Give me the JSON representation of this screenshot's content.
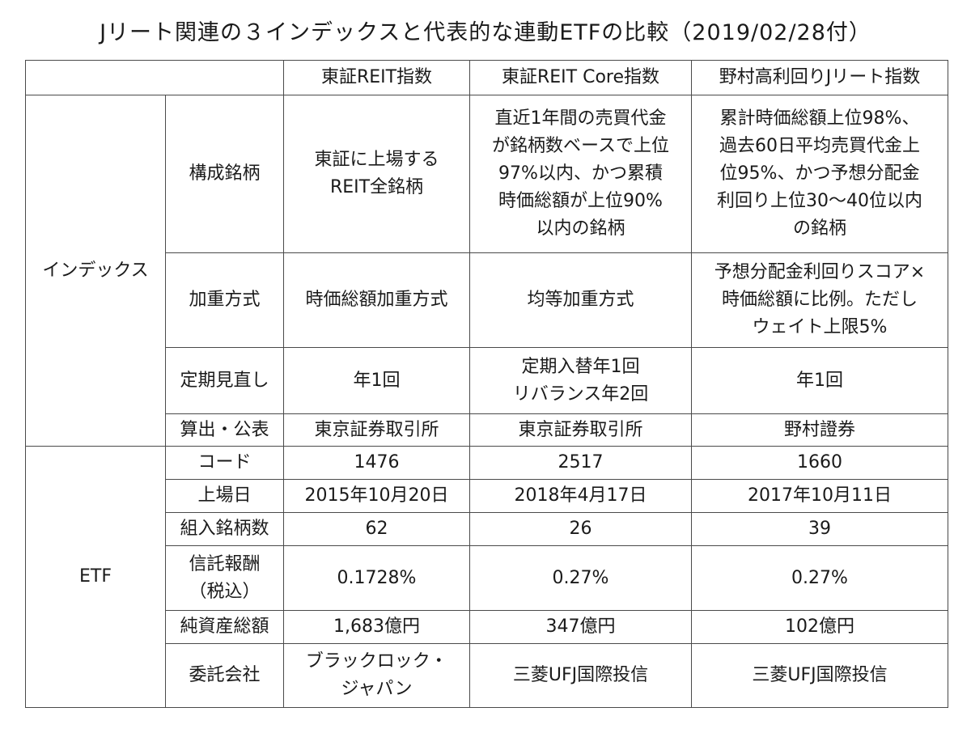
{
  "title": "Jリート関連の３インデックスと代表的な連動ETFの比較（2019/02/28付）",
  "header": {
    "col1": "東証REIT指数",
    "col2": "東証REIT Core指数",
    "col3": "野村高利回りJリート指数"
  },
  "groups": {
    "index": "インデックス",
    "etf": "ETF"
  },
  "rows": {
    "constituents": {
      "label": "構成銘柄",
      "c1": "東証に上場する\nREIT全銘柄",
      "c2": "直近1年間の売買代金\nが銘柄数ベースで上位\n97%以内、かつ累積\n時価総額が上位90%\n以内の銘柄",
      "c3": "累計時価総額上位98%、\n過去60日平均売買代金上\n位95%、かつ予想分配金\n利回り上位30〜40位以内\nの銘柄"
    },
    "weighting": {
      "label": "加重方式",
      "c1": "時価総額加重方式",
      "c2": "均等加重方式",
      "c3": "予想分配金利回りスコア×\n時価総額に比例。ただし\nウェイト上限5%"
    },
    "review": {
      "label": "定期見直し",
      "c1": "年1回",
      "c2": "定期入替年1回\nリバランス年2回",
      "c3": "年1回"
    },
    "publisher": {
      "label": "算出・公表",
      "c1": "東京証券取引所",
      "c2": "東京証券取引所",
      "c3": "野村證券"
    },
    "code": {
      "label": "コード",
      "c1": "1476",
      "c2": "2517",
      "c3": "1660"
    },
    "listing": {
      "label": "上場日",
      "c1": "2015年10月20日",
      "c2": "2018年4月17日",
      "c3": "2017年10月11日"
    },
    "holdings": {
      "label": "組入銘柄数",
      "c1": "62",
      "c2": "26",
      "c3": "39"
    },
    "fee": {
      "label": "信託報酬\n（税込）",
      "c1": "0.1728%",
      "c2": "0.27%",
      "c3": "0.27%"
    },
    "assets": {
      "label": "純資産総額",
      "c1": "1,683億円",
      "c2": "347億円",
      "c3": "102億円"
    },
    "manager": {
      "label": "委託会社",
      "c1": "ブラックロック・\nジャパン",
      "c2": "三菱UFJ国際投信",
      "c3": "三菱UFJ国際投信"
    }
  }
}
